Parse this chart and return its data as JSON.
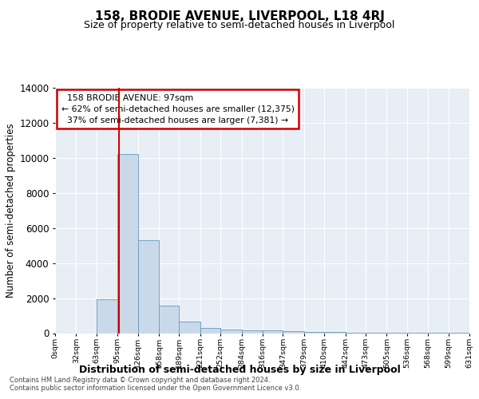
{
  "title": "158, BRODIE AVENUE, LIVERPOOL, L18 4RJ",
  "subtitle": "Size of property relative to semi-detached houses in Liverpool",
  "xlabel": "Distribution of semi-detached houses by size in Liverpool",
  "ylabel": "Number of semi-detached properties",
  "footer_line1": "Contains HM Land Registry data © Crown copyright and database right 2024.",
  "footer_line2": "Contains public sector information licensed under the Open Government Licence v3.0.",
  "property_label": "158 BRODIE AVENUE: 97sqm",
  "pct_smaller": 62,
  "pct_larger": 37,
  "count_smaller": 12375,
  "count_larger": 7381,
  "bin_edges": [
    0,
    32,
    63,
    95,
    126,
    158,
    189,
    221,
    252,
    284,
    316,
    347,
    379,
    410,
    442,
    473,
    505,
    536,
    568,
    599,
    631
  ],
  "bar_heights": [
    0,
    0,
    1950,
    10200,
    5300,
    1575,
    650,
    300,
    200,
    150,
    150,
    100,
    75,
    50,
    30,
    20,
    15,
    10,
    8,
    5
  ],
  "bar_color": "#c9d9ea",
  "bar_edge_color": "#6699bb",
  "red_line_x": 97,
  "ylim": [
    0,
    14000
  ],
  "yticks": [
    0,
    2000,
    4000,
    6000,
    8000,
    10000,
    12000,
    14000
  ],
  "xlim": [
    0,
    631
  ],
  "bg_color": "#e8eef6",
  "grid_color": "#ffffff",
  "annotation_box_edge": "#cc0000"
}
